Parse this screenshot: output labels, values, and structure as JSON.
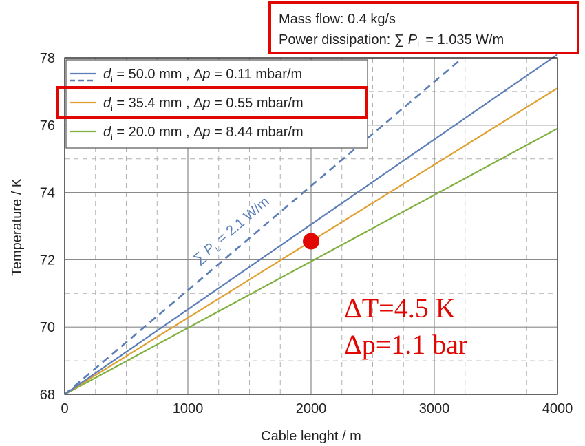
{
  "chart_data": {
    "type": "line",
    "xlabel": "Cable lenght / m",
    "ylabel": "Temperature / K",
    "xlim": [
      0,
      4000
    ],
    "ylim": [
      68,
      78
    ],
    "xticks": [
      0,
      1000,
      2000,
      3000,
      4000
    ],
    "yticks": [
      68,
      70,
      72,
      74,
      76,
      78
    ],
    "grid": true,
    "legend_position": "top-left",
    "series": [
      {
        "name_di": "50.0",
        "name_dp": "0.11",
        "color": "#5b7db8",
        "style": "solid",
        "x": [
          0,
          4000
        ],
        "y": [
          68,
          78.1
        ]
      },
      {
        "name_di": "35.4",
        "name_dp": "0.55",
        "color": "#e0a030",
        "style": "solid",
        "x": [
          0,
          4000
        ],
        "y": [
          68,
          77.1
        ]
      },
      {
        "name_di": "20.0",
        "name_dp": "8.44",
        "color": "#7fb040",
        "style": "solid",
        "x": [
          0,
          4000
        ],
        "y": [
          68,
          75.9
        ]
      },
      {
        "color": "#5b7db8",
        "style": "dashed",
        "x": [
          0,
          3230
        ],
        "y": [
          68,
          78
        ]
      }
    ],
    "legend": {
      "prefix": "d",
      "sub": "i",
      "mid": " mm , Δ",
      "p": "p",
      "unit": " mbar/m",
      "eq": " = "
    },
    "line_annotation": {
      "sum": "∑ ",
      "P": "P",
      "sub": "L",
      "rest": " = 2.1 W/m"
    },
    "marker": {
      "x": 2000,
      "y": 72.55,
      "color": "#e10600"
    }
  },
  "info_box": {
    "line1": "Mass flow: 0.4 kg/s",
    "line2_prefix": "Power dissipation: ∑ ",
    "line2_P": "P",
    "line2_sub": "L",
    "line2_suffix": " = 1.035 W/m"
  },
  "red_annotation": {
    "line1": "ΔT=4.5 K",
    "line2": "Δp=1.1 bar"
  },
  "colors": {
    "highlight": "#e10600",
    "grid": "#aaaaaa",
    "axis": "#222222"
  }
}
